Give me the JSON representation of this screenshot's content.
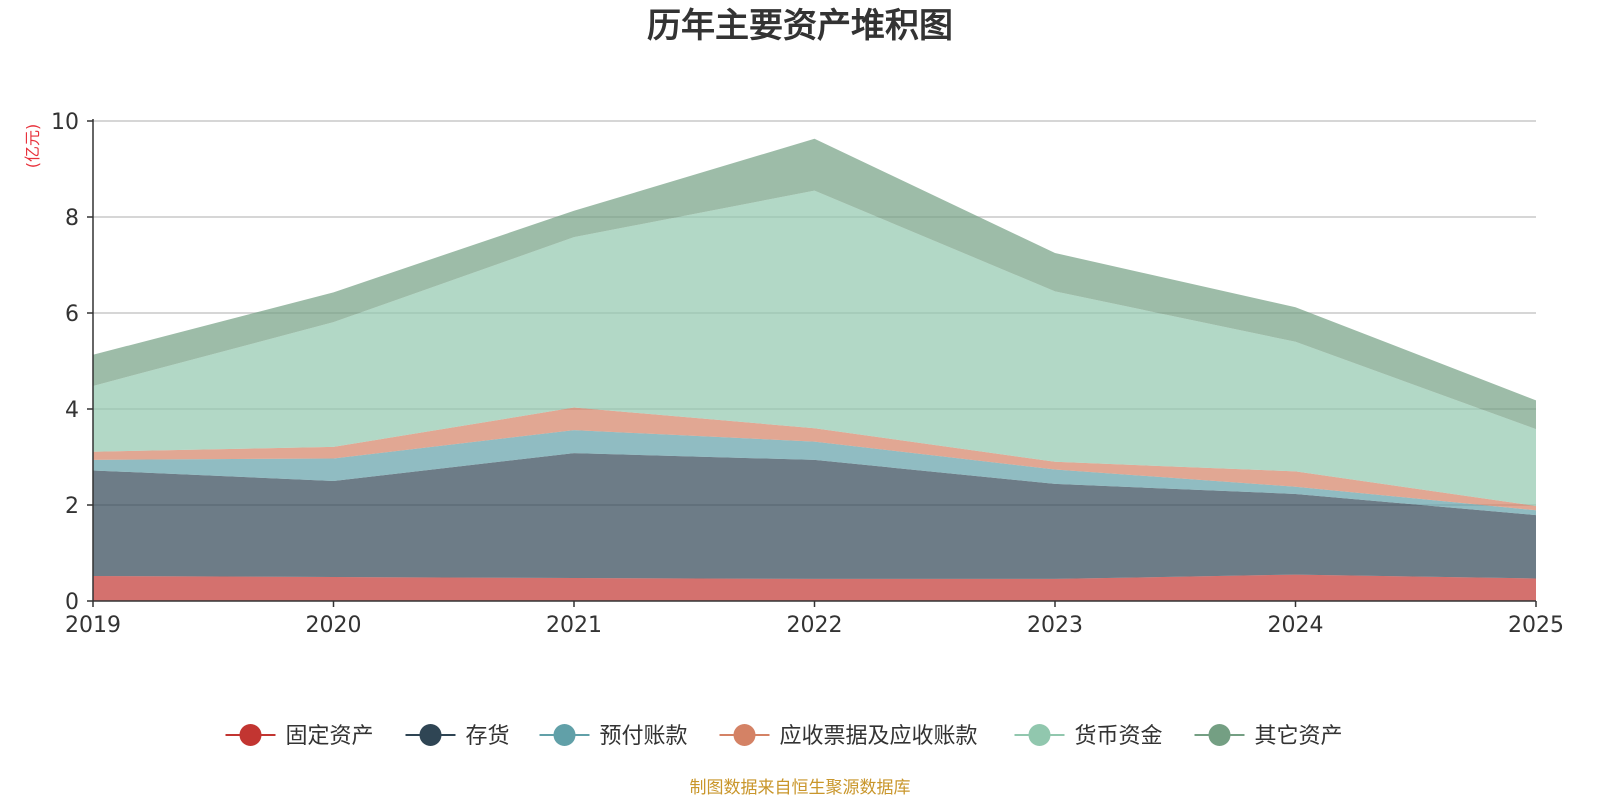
{
  "chart_data": {
    "type": "area",
    "stacked": true,
    "title": "历年主要资产堆积图",
    "unit_label": "(亿元)",
    "x": [
      "2019",
      "2020",
      "2021",
      "2022",
      "2023",
      "2024",
      "2025"
    ],
    "ylim": [
      0,
      10
    ],
    "yticks": [
      0,
      2,
      4,
      6,
      8,
      10
    ],
    "grid": true,
    "legend_position": "bottom",
    "series": [
      {
        "name": "固定资产",
        "color": "#c23531",
        "values": [
          0.52,
          0.5,
          0.48,
          0.46,
          0.46,
          0.55,
          0.47
        ]
      },
      {
        "name": "存货",
        "color": "#2f4554",
        "values": [
          2.2,
          2.0,
          2.6,
          2.48,
          1.98,
          1.68,
          1.32
        ]
      },
      {
        "name": "预付账款",
        "color": "#61a0a8",
        "values": [
          0.22,
          0.47,
          0.48,
          0.38,
          0.3,
          0.15,
          0.1
        ]
      },
      {
        "name": "应收票据及应收账款",
        "color": "#d48265",
        "values": [
          0.17,
          0.24,
          0.47,
          0.28,
          0.16,
          0.32,
          0.09
        ]
      },
      {
        "name": "货币资金",
        "color": "#91c7ae",
        "values": [
          1.37,
          2.6,
          3.55,
          4.95,
          3.55,
          2.7,
          1.6
        ]
      },
      {
        "name": "其它资产",
        "color": "#749f83",
        "values": [
          0.65,
          0.62,
          0.55,
          1.08,
          0.8,
          0.72,
          0.6
        ]
      }
    ]
  },
  "footer": {
    "source": "制图数据来自恒生聚源数据库",
    "source_color": "#c9962b"
  }
}
